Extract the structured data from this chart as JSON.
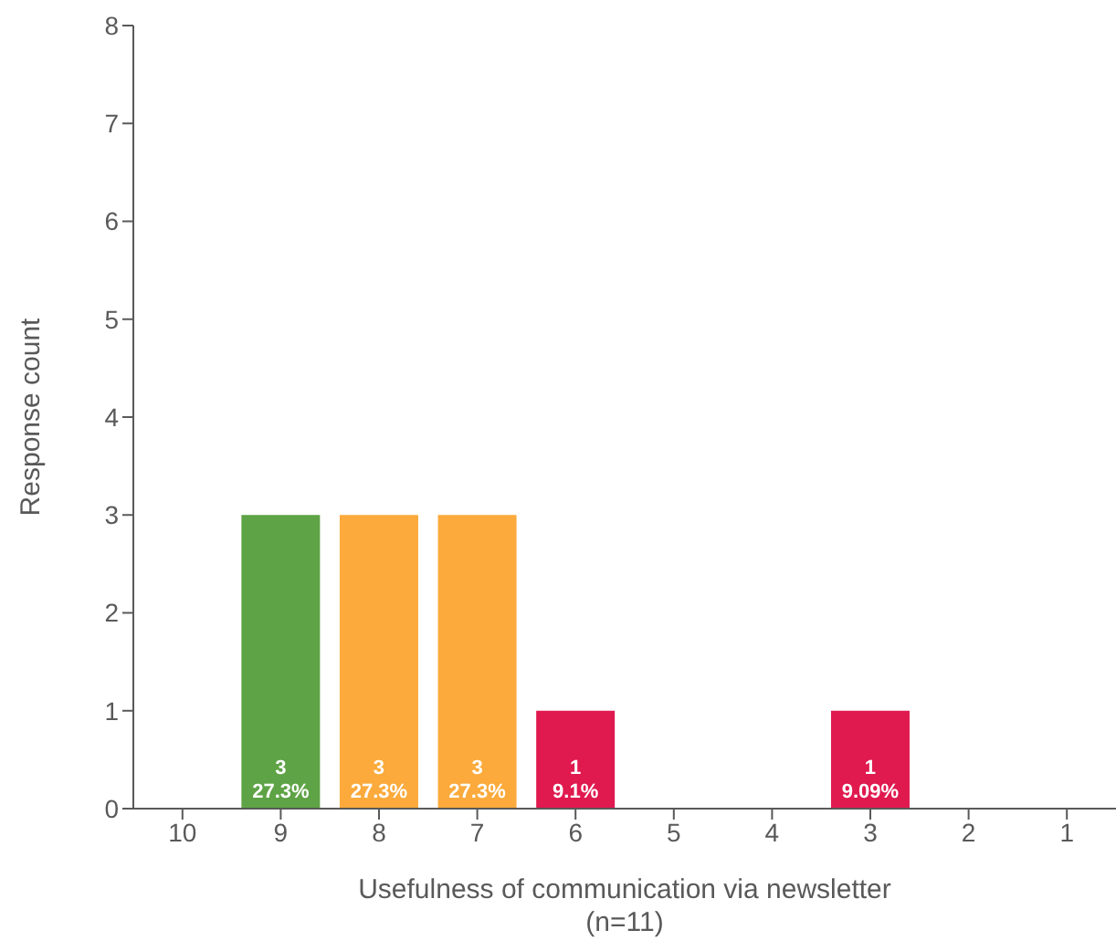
{
  "chart_data": {
    "type": "bar",
    "xlabel": "Usefulness of communication via newsletter\n(n=11)",
    "ylabel": "Response count",
    "categories": [
      "10",
      "9",
      "8",
      "7",
      "6",
      "5",
      "4",
      "3",
      "2",
      "1"
    ],
    "values": [
      0,
      3,
      3,
      3,
      1,
      0,
      0,
      1,
      0,
      0
    ],
    "colors": [
      "#5ea345",
      "#5ea345",
      "#fbaa3b",
      "#fbaa3b",
      "#e0194f",
      "#e0194f",
      "#e0194f",
      "#e0194f",
      "#e0194f",
      "#e0194f"
    ],
    "value_labels": [
      null,
      "3\n27.3%",
      "3\n27.3%",
      "3\n27.3%",
      "1\n9.1%",
      null,
      null,
      "1\n9.09%",
      null,
      null
    ],
    "ylim": [
      0,
      8
    ],
    "yticks": [
      0,
      1,
      2,
      3,
      4,
      5,
      6,
      7,
      8
    ]
  }
}
